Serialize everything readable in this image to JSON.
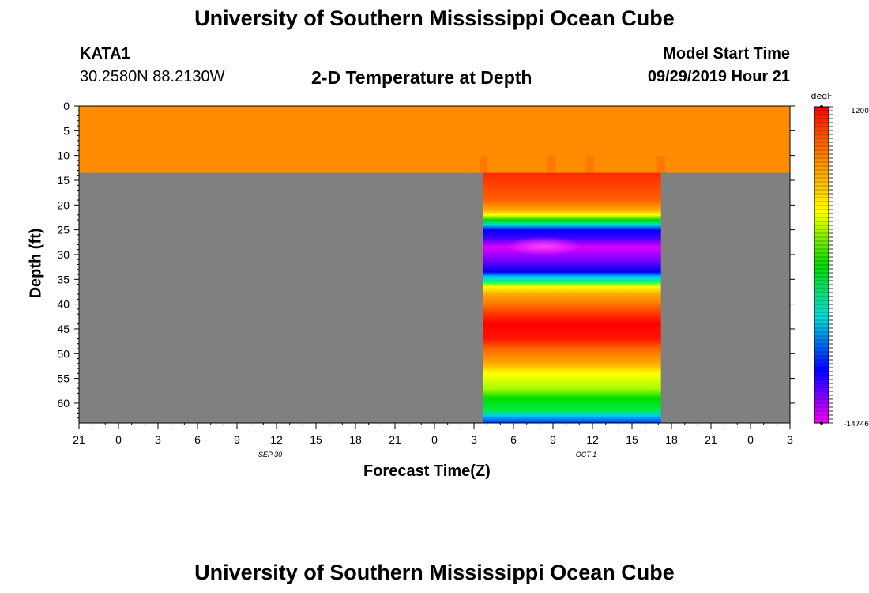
{
  "page": {
    "title_top": "University of Southern Mississippi Ocean Cube",
    "title_bottom": "University of Southern Mississippi Ocean Cube",
    "station_id": "KATA1",
    "station_coords": "30.2580N 88.2130W",
    "model_start_label": "Model Start Time",
    "model_start_value": "09/29/2019 Hour 21"
  },
  "chart_data": {
    "type": "heatmap",
    "title": "2-D Temperature at Depth",
    "xlabel": "Forecast Time(Z)",
    "ylabel": "Depth (ft)",
    "x_range_hours": [
      0,
      54
    ],
    "x_tick_labels": [
      "21",
      "0",
      "3",
      "6",
      "9",
      "12",
      "15",
      "18",
      "21",
      "0",
      "3",
      "6",
      "9",
      "12",
      "15",
      "18",
      "21",
      "0",
      "3"
    ],
    "date_labels": [
      {
        "label": "SEP 30",
        "hour": 15
      },
      {
        "label": "OCT 1",
        "hour": 39
      }
    ],
    "y_range_ft": [
      0,
      64
    ],
    "y_tick_labels": [
      "0",
      "5",
      "10",
      "15",
      "20",
      "25",
      "30",
      "35",
      "40",
      "45",
      "50",
      "55",
      "60"
    ],
    "surface_layer": {
      "depth_ft": [
        0,
        13.5
      ],
      "color": "#ff8c00"
    },
    "no_data_color": "#808080",
    "data_window_hours": [
      30.7,
      44.2
    ],
    "profile": [
      {
        "depth": 13.5,
        "color": "#ff2a00"
      },
      {
        "depth": 19,
        "color": "#ff6000"
      },
      {
        "depth": 21,
        "color": "#ffaa00"
      },
      {
        "depth": 22,
        "color": "#ffff00"
      },
      {
        "depth": 23,
        "color": "#00dd00"
      },
      {
        "depth": 24,
        "color": "#00dddd"
      },
      {
        "depth": 25,
        "color": "#0000ff"
      },
      {
        "depth": 26.5,
        "color": "#3300ff"
      },
      {
        "depth": 28.5,
        "color": "#dd00ff"
      },
      {
        "depth": 31.5,
        "color": "#6600ff"
      },
      {
        "depth": 33.5,
        "color": "#0000ee"
      },
      {
        "depth": 34.5,
        "color": "#00ccff"
      },
      {
        "depth": 35.5,
        "color": "#00ff66"
      },
      {
        "depth": 36.5,
        "color": "#ffff00"
      },
      {
        "depth": 38,
        "color": "#ffaa00"
      },
      {
        "depth": 40,
        "color": "#ff7700"
      },
      {
        "depth": 42,
        "color": "#ff3300"
      },
      {
        "depth": 44,
        "color": "#ff0000"
      },
      {
        "depth": 47,
        "color": "#ff1500"
      },
      {
        "depth": 49,
        "color": "#ff6600"
      },
      {
        "depth": 52,
        "color": "#ffaa00"
      },
      {
        "depth": 54,
        "color": "#ffff00"
      },
      {
        "depth": 57,
        "color": "#aaff00"
      },
      {
        "depth": 59,
        "color": "#00dd00"
      },
      {
        "depth": 61.5,
        "color": "#00ee44"
      },
      {
        "depth": 62.5,
        "color": "#00ccff"
      },
      {
        "depth": 63.5,
        "color": "#0066ff"
      },
      {
        "depth": 64,
        "color": "#0033ff"
      }
    ],
    "colorbar": {
      "unit": "degF",
      "top_label": "1200",
      "bottom_label": "-14746",
      "colors": [
        "#ff0000",
        "#ff8c00",
        "#ffff00",
        "#00dd00",
        "#00dddd",
        "#0000ff",
        "#ff00ff"
      ]
    }
  }
}
